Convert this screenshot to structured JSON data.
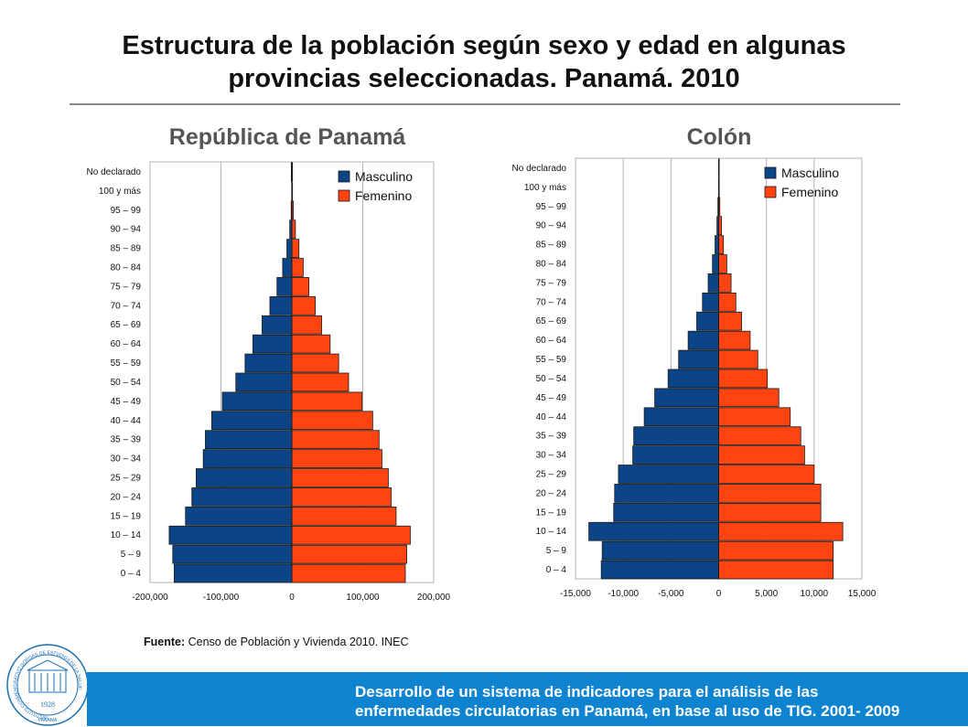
{
  "title": {
    "line1": "Estructura de la población según sexo y edad en algunas",
    "line2": "provincias seleccionadas. Panamá. 2010"
  },
  "source": {
    "label": "Fuente:",
    "text": " Censo de Población y Vivienda  2010. INEC"
  },
  "footer": {
    "line1": "Desarrollo de un sistema de indicadores para el análisis de las",
    "line2": "enfermedades circulatorias en Panamá, en base al uso de TIG. 2001- 2009"
  },
  "logo": {
    "text_ring": "INSTITUTO CONMEMORATIVO GORGAS DE ESTUDIOS DE LA SALUD",
    "year": "1928",
    "place": "PANAMA"
  },
  "colors": {
    "male": "#0b4587",
    "female": "#ff4411",
    "footer": "#0e83cf"
  },
  "chart_data": [
    {
      "type": "bar",
      "orientation": "horizontal",
      "title": "República de Panamá",
      "categories": [
        "0 – 4",
        "5 – 9",
        "10 – 14",
        "15 – 19",
        "20 – 24",
        "25 – 29",
        "30 – 34",
        "35 – 39",
        "40 – 44",
        "45 – 49",
        "50 – 54",
        "55 – 59",
        "60 – 64",
        "65 – 69",
        "70 – 74",
        "75 – 79",
        "80 – 84",
        "85 – 89",
        "90 – 94",
        "95 – 99",
        "100 y más",
        "No declarado"
      ],
      "series": [
        {
          "name": "Masculino",
          "values": [
            -166000,
            -168000,
            -173000,
            -150000,
            -141000,
            -135000,
            -125000,
            -122000,
            -113000,
            -98000,
            -79000,
            -66000,
            -55000,
            -42000,
            -31000,
            -21000,
            -13000,
            -7000,
            -3000,
            -1000,
            -300,
            -800
          ]
        },
        {
          "name": "Femenino",
          "values": [
            160000,
            162000,
            167000,
            147000,
            140000,
            136000,
            127000,
            123000,
            114000,
            99000,
            80000,
            66000,
            54000,
            42000,
            33000,
            24000,
            16000,
            10000,
            5000,
            2000,
            600,
            800
          ]
        }
      ],
      "xlim": [
        -200000,
        200000
      ],
      "xticks": [
        "-200,000",
        "-100,000",
        "0",
        "100,000",
        "200,000"
      ],
      "grid": true,
      "legend": "top-right"
    },
    {
      "type": "bar",
      "orientation": "horizontal",
      "title": "Colón",
      "categories": [
        "0 – 4",
        "5 – 9",
        "10 – 14",
        "15 – 19",
        "20 – 24",
        "25 – 29",
        "30 – 34",
        "35 – 39",
        "40 – 44",
        "45 – 49",
        "50 – 54",
        "55 – 59",
        "60 – 64",
        "65 – 69",
        "70 – 74",
        "75 – 79",
        "80 – 84",
        "85 – 89",
        "90 – 94",
        "95 – 99",
        "100 y más",
        "No declarado"
      ],
      "series": [
        {
          "name": "Masculino",
          "values": [
            -12300,
            -12200,
            -13600,
            -11000,
            -10900,
            -10500,
            -9000,
            -8900,
            -7800,
            -6700,
            -5300,
            -4200,
            -3200,
            -2300,
            -1700,
            -1100,
            -650,
            -380,
            -180,
            -80,
            -20,
            -10
          ]
        },
        {
          "name": "Femenino",
          "values": [
            12000,
            12000,
            13000,
            10700,
            10700,
            10000,
            9000,
            8600,
            7500,
            6300,
            5100,
            4100,
            3300,
            2400,
            1800,
            1300,
            850,
            500,
            300,
            120,
            30,
            10
          ]
        }
      ],
      "xlim": [
        -15000,
        15000
      ],
      "xticks": [
        "-15,000",
        "-10,000",
        "-5,000",
        "0",
        "5,000",
        "10,000",
        "15,000"
      ],
      "grid": true,
      "legend": "top-right"
    }
  ]
}
